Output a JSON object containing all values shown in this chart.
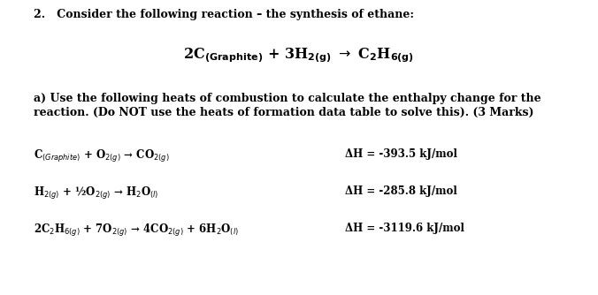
{
  "bg_color": "#ffffff",
  "figsize": [
    6.76,
    3.34
  ],
  "dpi": 100,
  "header": "2.   Consider the following reaction – the synthesis of ethane:",
  "main_eq_parts": {
    "pre": "2C",
    "sub1": "(Graphite)",
    "mid": " + 3H",
    "sub2": "2(g)",
    "arr": " → C",
    "sub3": "2",
    "end": "H",
    "sub4": "6(g)"
  },
  "part_a_line1": "a) Use the following heats of combustion to calculate the enthalpy change for the",
  "part_a_line2": "reaction. (Do NOT use the heats of formation data table to solve this). (3 Marks)",
  "reactions": [
    {
      "eq": "C$_{(Graphite)}$ + O$_{2(g)}$ → CO$_{2(g)}$",
      "dH": "ΔH = -393.5 kJ/mol"
    },
    {
      "eq": "H$_{2(g)}$ + ½O$_{2(g)}$ → H$_2$O$_{(l)}$",
      "dH": "ΔH = -285.8 kJ/mol"
    },
    {
      "eq": "2C$_2$H$_{6(g)}$ + 7O$_{2(g)}$ → 4CO$_{2(g)}$ + 6H$_2$O$_{(l)}$",
      "dH": "ΔH = -3119.6 kJ/mol"
    }
  ],
  "font_size_header": 9.0,
  "font_size_main_eq": 11.5,
  "font_size_body": 9.0,
  "font_size_rxn": 8.5
}
